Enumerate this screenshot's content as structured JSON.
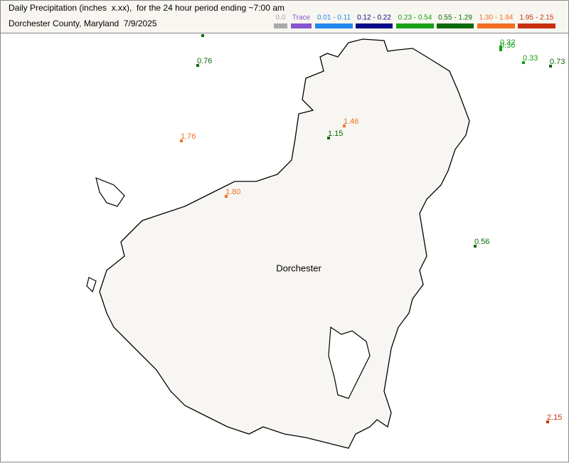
{
  "header": {
    "title": "Daily Precipitation (inches  x.xx),  for the 24 hour period ending ~7:00 am",
    "subtitle": "Dorchester County, Maryland  7/9/2025"
  },
  "legend": [
    {
      "label": "0.0",
      "color": "#aaaaaa"
    },
    {
      "label": "Trace",
      "color": "#8855cc"
    },
    {
      "label": "0.01 - 0.11",
      "color": "#2288ee"
    },
    {
      "label": "0.12 - 0.22",
      "color": "#0a0a8a"
    },
    {
      "label": "0.23 - 0.54",
      "color": "#16a016"
    },
    {
      "label": "0.55 - 1.29",
      "color": "#0b6a0b"
    },
    {
      "label": "1.30 - 1.94",
      "color": "#f07020"
    },
    {
      "label": "1.95 - 2.15",
      "color": "#c83010"
    }
  ],
  "map": {
    "county_label": "Dorchester",
    "stations": [
      {
        "label": "0.76",
        "color": "#0b6a0b"
      },
      {
        "label": "0.32",
        "color": "#16a016"
      },
      {
        "label": "0.36",
        "color": "#16a016"
      },
      {
        "label": "0.33",
        "color": "#16a016"
      },
      {
        "label": "0.73",
        "color": "#0b6a0b"
      },
      {
        "label": "1.76",
        "color": "#f07020"
      },
      {
        "label": "1.46",
        "color": "#f07020"
      },
      {
        "label": "1.15",
        "color": "#0b6a0b"
      },
      {
        "label": "1.80",
        "color": "#f07020"
      },
      {
        "label": "0.56",
        "color": "#0b6a0b"
      },
      {
        "label": "2.15",
        "color": "#c83010"
      }
    ]
  }
}
